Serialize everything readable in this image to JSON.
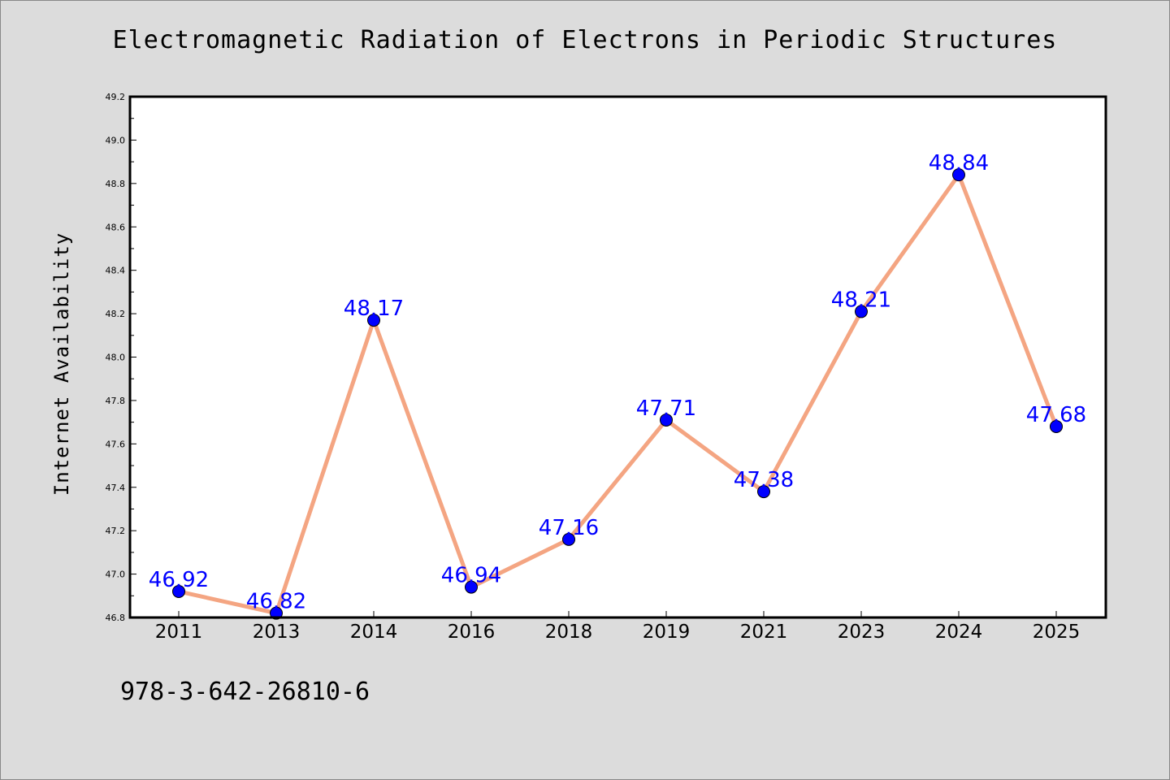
{
  "chart_data": {
    "type": "line",
    "title": "Electromagnetic Radiation of Electrons in Periodic Structures",
    "xlabel": "",
    "ylabel": "Internet Availability",
    "categories": [
      "2011",
      "2013",
      "2014",
      "2016",
      "2018",
      "2019",
      "2021",
      "2023",
      "2024",
      "2025"
    ],
    "series": [
      {
        "values": [
          46.92,
          46.82,
          48.17,
          46.94,
          47.16,
          47.71,
          47.38,
          48.21,
          48.84,
          47.68
        ]
      }
    ],
    "data_labels": [
      "46.92",
      "46.82",
      "48.17",
      "46.94",
      "47.16",
      "47.71",
      "47.38",
      "48.21",
      "48.84",
      "47.68"
    ],
    "ylim": [
      46.8,
      49.2
    ],
    "yticks": [
      46.8,
      47.0,
      47.2,
      47.4,
      47.6,
      47.8,
      48.0,
      48.2,
      48.4,
      48.6,
      48.8,
      49.0,
      49.2
    ],
    "ytick_labels": [
      "46.8",
      "47.0",
      "47.2",
      "47.4",
      "47.6",
      "47.8",
      "48.0",
      "48.2",
      "48.4",
      "48.6",
      "48.8",
      "49.0",
      "49.2"
    ],
    "grid": false,
    "legend": "none",
    "colors": {
      "line": "#f4a582",
      "marker": "#0000ff",
      "data_label": "#0000ff",
      "plot_background": "#ffffff",
      "figure_background": "#dcdcdc"
    }
  },
  "footer": {
    "code": "978-3-642-26810-6"
  }
}
